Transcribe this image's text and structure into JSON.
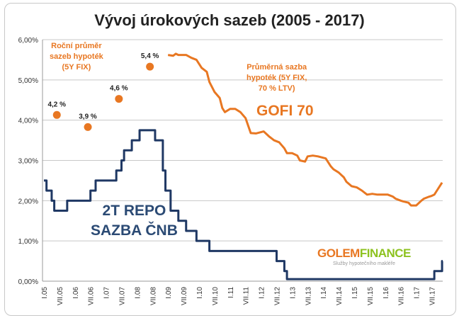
{
  "chart_data": {
    "type": "line",
    "title": "Vývoj úrokových sazeb (2005 - 2017)",
    "xlabel": "",
    "ylabel": "",
    "ylim": [
      0,
      6
    ],
    "yticks": [
      "0,00%",
      "1,00%",
      "2,00%",
      "3,00%",
      "4,00%",
      "5,00%",
      "6,00%"
    ],
    "xticks": [
      "I.05",
      "VII.05",
      "I.06",
      "VII.06",
      "I.07",
      "VII.07",
      "I.08",
      "VII.08",
      "I.09",
      "VII.09",
      "I.10",
      "VII.10",
      "I.11",
      "VII.11",
      "I.12",
      "VII.12",
      "I.13",
      "VII.13",
      "I.14",
      "VII.14",
      "I.15",
      "VII.15",
      "I.16",
      "VII.16",
      "I.17",
      "VII.17"
    ],
    "xrange": [
      "2005-01",
      "2017-11"
    ],
    "grid": "horizontal",
    "colors": {
      "repo": "#1f3864",
      "gofi": "#e87722",
      "dots": "#e87722"
    },
    "series": [
      {
        "name": "2T REPO SAZBA ČNB",
        "step": true,
        "points": [
          [
            "2005-01",
            2.5
          ],
          [
            "2005-02",
            2.25
          ],
          [
            "2005-04",
            2.0
          ],
          [
            "2005-05",
            1.75
          ],
          [
            "2005-10",
            2.0
          ],
          [
            "2006-07",
            2.25
          ],
          [
            "2006-09",
            2.5
          ],
          [
            "2007-05",
            2.75
          ],
          [
            "2007-07",
            3.0
          ],
          [
            "2007-08",
            3.25
          ],
          [
            "2007-11",
            3.5
          ],
          [
            "2008-02",
            3.75
          ],
          [
            "2008-08",
            3.5
          ],
          [
            "2008-11",
            2.75
          ],
          [
            "2008-12",
            2.25
          ],
          [
            "2009-02",
            1.75
          ],
          [
            "2009-05",
            1.5
          ],
          [
            "2009-08",
            1.25
          ],
          [
            "2009-12",
            1.0
          ],
          [
            "2010-05",
            0.75
          ],
          [
            "2012-07",
            0.5
          ],
          [
            "2012-10",
            0.25
          ],
          [
            "2012-11",
            0.05
          ],
          [
            "2017-08",
            0.25
          ],
          [
            "2017-11",
            0.5
          ]
        ]
      },
      {
        "name": "Průměrná sazba hypoték (5Y FIX, 70 % LTV) GOFI 70",
        "step": false,
        "points": [
          [
            "2009-01",
            5.62
          ],
          [
            "2009-03",
            5.6
          ],
          [
            "2009-04",
            5.65
          ],
          [
            "2009-05",
            5.62
          ],
          [
            "2009-08",
            5.62
          ],
          [
            "2009-10",
            5.55
          ],
          [
            "2009-12",
            5.5
          ],
          [
            "2010-02",
            5.3
          ],
          [
            "2010-04",
            5.2
          ],
          [
            "2010-05",
            4.95
          ],
          [
            "2010-07",
            4.7
          ],
          [
            "2010-09",
            4.55
          ],
          [
            "2010-10",
            4.3
          ],
          [
            "2010-11",
            4.2
          ],
          [
            "2011-01",
            4.28
          ],
          [
            "2011-03",
            4.28
          ],
          [
            "2011-05",
            4.2
          ],
          [
            "2011-07",
            4.05
          ],
          [
            "2011-09",
            3.68
          ],
          [
            "2011-11",
            3.67
          ],
          [
            "2012-02",
            3.72
          ],
          [
            "2012-04",
            3.6
          ],
          [
            "2012-06",
            3.5
          ],
          [
            "2012-08",
            3.45
          ],
          [
            "2012-10",
            3.3
          ],
          [
            "2012-11",
            3.18
          ],
          [
            "2013-01",
            3.18
          ],
          [
            "2013-03",
            3.12
          ],
          [
            "2013-04",
            3.0
          ],
          [
            "2013-06",
            2.97
          ],
          [
            "2013-07",
            3.1
          ],
          [
            "2013-09",
            3.12
          ],
          [
            "2013-11",
            3.1
          ],
          [
            "2014-02",
            3.05
          ],
          [
            "2014-04",
            2.85
          ],
          [
            "2014-05",
            2.78
          ],
          [
            "2014-07",
            2.7
          ],
          [
            "2014-09",
            2.58
          ],
          [
            "2014-10",
            2.47
          ],
          [
            "2014-12",
            2.36
          ],
          [
            "2015-02",
            2.33
          ],
          [
            "2015-04",
            2.25
          ],
          [
            "2015-06",
            2.15
          ],
          [
            "2015-08",
            2.17
          ],
          [
            "2015-10",
            2.15
          ],
          [
            "2015-12",
            2.15
          ],
          [
            "2016-02",
            2.15
          ],
          [
            "2016-04",
            2.1
          ],
          [
            "2016-05",
            2.05
          ],
          [
            "2016-07",
            2.0
          ],
          [
            "2016-08",
            1.98
          ],
          [
            "2016-10",
            1.95
          ],
          [
            "2016-11",
            1.88
          ],
          [
            "2017-01",
            1.88
          ],
          [
            "2017-03",
            2.0
          ],
          [
            "2017-04",
            2.05
          ],
          [
            "2017-06",
            2.1
          ],
          [
            "2017-07",
            2.12
          ],
          [
            "2017-08",
            2.15
          ],
          [
            "2017-09",
            2.25
          ],
          [
            "2017-10",
            2.35
          ],
          [
            "2017-11",
            2.45
          ]
        ]
      }
    ],
    "dots": {
      "name": "Roční průměr sazeb hypoték (5Y FIX)",
      "points": [
        {
          "x": "2005-06",
          "y": 4.2,
          "label": "4,2 %"
        },
        {
          "x": "2006-06",
          "y": 3.9,
          "label": "3,9 %"
        },
        {
          "x": "2007-06",
          "y": 4.6,
          "label": "4,6 %"
        },
        {
          "x": "2008-06",
          "y": 5.4,
          "label": "5,4 %"
        }
      ]
    }
  },
  "annotations": {
    "dots_label": [
      "Roční průměr",
      "sazeb hypoték",
      "(5Y FIX)"
    ],
    "gofi_label": [
      "Průměrná sazba",
      "hypoték (5Y FIX,",
      "70 % LTV)"
    ],
    "gofi_name": "GOFI 70",
    "repo_label": [
      "2T REPO",
      "SAZBA ČNB"
    ]
  },
  "logo": {
    "part1": "GOLEM",
    "part2": "FINANCE",
    "tagline": "Služby hypotečního makléře",
    "color1": "#e87722",
    "color2": "#8dc21f"
  }
}
